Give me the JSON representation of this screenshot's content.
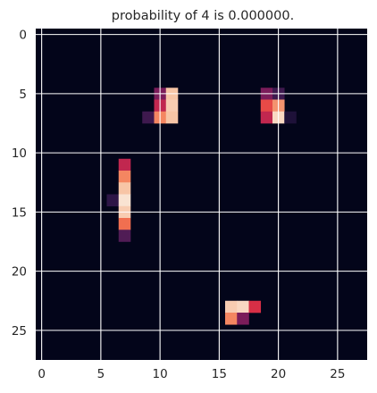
{
  "chart_data": {
    "type": "heatmap",
    "title": "probability of  4 is  0.000000.",
    "xlabel": "",
    "ylabel": "",
    "grid": true,
    "shape": [
      28,
      28
    ],
    "xlim": [
      -0.5,
      27.5
    ],
    "ylim": [
      27.5,
      -0.5
    ],
    "x_ticks": [
      0,
      5,
      10,
      15,
      20,
      25
    ],
    "y_ticks": [
      0,
      5,
      10,
      15,
      20,
      25
    ],
    "background_value": 0,
    "colormap": [
      "#03051a",
      "#2a1646",
      "#5c1e5a",
      "#a11a5b",
      "#e13342",
      "#f37651",
      "#f6b48f",
      "#faebdd"
    ],
    "cells": [
      {
        "row": 5,
        "col": 10,
        "value": 0.35
      },
      {
        "row": 5,
        "col": 11,
        "value": 0.9
      },
      {
        "row": 6,
        "col": 10,
        "value": 0.5
      },
      {
        "row": 6,
        "col": 11,
        "value": 0.92
      },
      {
        "row": 7,
        "col": 9,
        "value": 0.2
      },
      {
        "row": 7,
        "col": 10,
        "value": 0.75
      },
      {
        "row": 7,
        "col": 11,
        "value": 0.9
      },
      {
        "row": 5,
        "col": 19,
        "value": 0.35
      },
      {
        "row": 5,
        "col": 20,
        "value": 0.2
      },
      {
        "row": 6,
        "col": 19,
        "value": 0.62
      },
      {
        "row": 6,
        "col": 20,
        "value": 0.78
      },
      {
        "row": 7,
        "col": 19,
        "value": 0.5
      },
      {
        "row": 7,
        "col": 20,
        "value": 0.95
      },
      {
        "row": 7,
        "col": 21,
        "value": 0.1
      },
      {
        "row": 11,
        "col": 7,
        "value": 0.5
      },
      {
        "row": 12,
        "col": 7,
        "value": 0.75
      },
      {
        "row": 13,
        "col": 7,
        "value": 0.9
      },
      {
        "row": 14,
        "col": 6,
        "value": 0.15
      },
      {
        "row": 14,
        "col": 7,
        "value": 0.98
      },
      {
        "row": 15,
        "col": 7,
        "value": 0.92
      },
      {
        "row": 16,
        "col": 7,
        "value": 0.7
      },
      {
        "row": 17,
        "col": 7,
        "value": 0.25
      },
      {
        "row": 23,
        "col": 16,
        "value": 0.92
      },
      {
        "row": 23,
        "col": 17,
        "value": 0.95
      },
      {
        "row": 23,
        "col": 18,
        "value": 0.55
      },
      {
        "row": 24,
        "col": 16,
        "value": 0.75
      },
      {
        "row": 24,
        "col": 17,
        "value": 0.35
      }
    ]
  }
}
